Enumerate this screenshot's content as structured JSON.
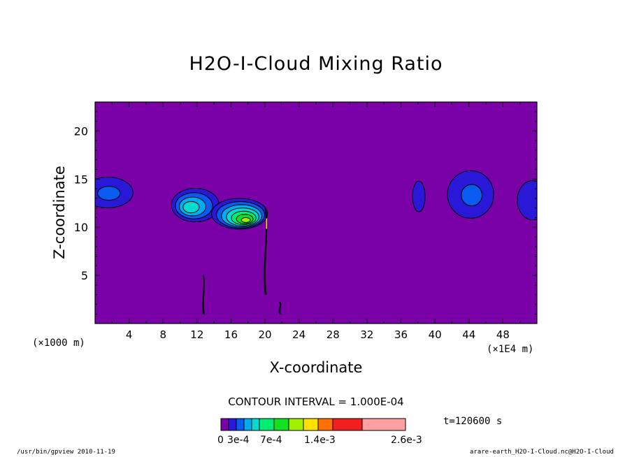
{
  "chart_data": {
    "type": "contour",
    "title": "H2O-I-Cloud Mixing Ratio",
    "xlabel": "X-coordinate",
    "ylabel": "Z-coordinate",
    "x_unit_left": "(×1000 m)",
    "x_unit_right": "(×1E4 m)",
    "xlim": [
      0,
      52
    ],
    "ylim": [
      0,
      23
    ],
    "x_ticks": [
      4,
      8,
      12,
      16,
      20,
      24,
      28,
      32,
      36,
      40,
      44,
      48
    ],
    "y_ticks": [
      5,
      10,
      15,
      20
    ],
    "contour_interval": "CONTOUR INTERVAL = 1.000E-04",
    "time_label": "t=120600 s",
    "background_color": "#7a00a8",
    "levels": [
      0,
      0.0001,
      0.0002,
      0.0003,
      0.0004,
      0.0005,
      0.0006,
      0.0007,
      0.0009,
      0.0011,
      0.0014,
      0.0018,
      0.0026
    ],
    "level_colors": [
      "#7a00a8",
      "#2a18d8",
      "#0a5cf0",
      "#00aef0",
      "#00ddd0",
      "#00ee70",
      "#10e020",
      "#a0f000",
      "#ffe000",
      "#ff7000",
      "#f02020",
      "#ffa0a0"
    ],
    "colorbar_labels": [
      "0",
      "3e-4",
      "7e-4",
      "1.4e-3",
      "2.6e-3"
    ],
    "cloud_features": [
      {
        "x": 1.5,
        "z": 13.6,
        "peak_level": 2
      },
      {
        "x": 11.8,
        "z": 12.3,
        "peak_level": 4
      },
      {
        "x": 17.0,
        "z": 11.4,
        "peak_level": 7
      },
      {
        "x": 38.1,
        "z": 13.2,
        "peak_level": 1
      },
      {
        "x": 44.2,
        "z": 13.4,
        "peak_level": 2
      },
      {
        "x": 51.5,
        "z": 12.8,
        "peak_level": 1
      }
    ],
    "thin_features": [
      {
        "x": 20.1,
        "z_min": 3.0,
        "z_max": 12.0
      },
      {
        "x": 12.8,
        "z_min": 1.0,
        "z_max": 5.0
      },
      {
        "x": 21.8,
        "z_min": 1.0,
        "z_max": 2.2
      }
    ]
  },
  "footer": {
    "left": "/usr/bin/gpview  2010-11-19",
    "right": "arare-earth_H2O-I-Cloud.nc@H2O-I-Cloud"
  }
}
